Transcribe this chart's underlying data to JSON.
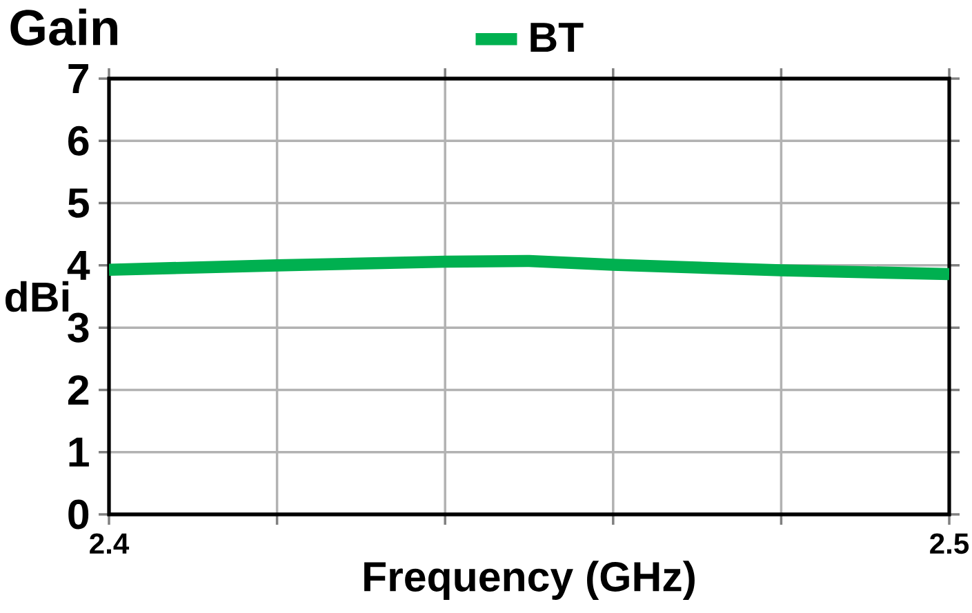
{
  "chart_data": {
    "type": "line",
    "title": "Gain",
    "xlabel": "Frequency (GHz)",
    "ylabel": "dBi",
    "x": [
      2.4,
      2.42,
      2.44,
      2.45,
      2.46,
      2.48,
      2.5
    ],
    "series": [
      {
        "name": "BT",
        "color": "#00b050",
        "values": [
          3.93,
          4.0,
          4.06,
          4.07,
          4.01,
          3.92,
          3.86
        ]
      }
    ],
    "xlim": [
      2.4,
      2.5
    ],
    "ylim": [
      0,
      7
    ],
    "xticks": [
      2.4,
      {
        "value": 2.42,
        "label": null
      },
      {
        "value": 2.44,
        "label": null
      },
      {
        "value": 2.46,
        "label": null
      },
      {
        "value": 2.48,
        "label": null
      },
      2.5
    ],
    "yticks": [
      0,
      1,
      2,
      3,
      4,
      5,
      6,
      7
    ],
    "grid": true,
    "legend": "top",
    "marker": "none",
    "line_style": "solid"
  }
}
